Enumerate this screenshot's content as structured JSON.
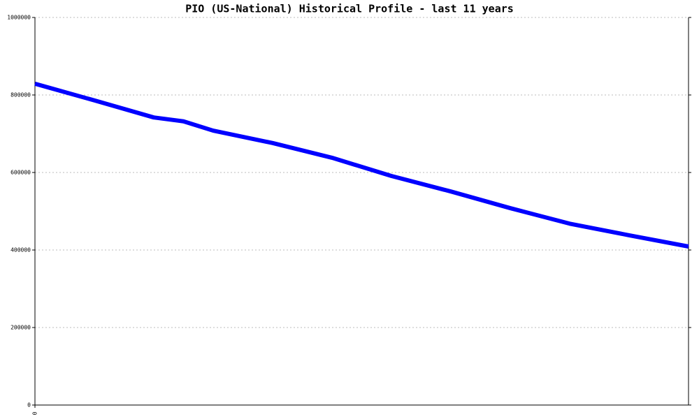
{
  "chart_data": {
    "type": "line",
    "title": "PIO (US-National) Historical Profile - last 11 years",
    "x": [
      0,
      1,
      2,
      2.5,
      3,
      4,
      5,
      6,
      7,
      8,
      9,
      10,
      11
    ],
    "series": [
      {
        "color": "#0000ff",
        "values": [
          829000,
          786000,
          742000,
          732000,
          708000,
          676000,
          638000,
          591000,
          551000,
          508000,
          468000,
          438000,
          409000
        ]
      }
    ],
    "xlim": [
      0,
      11
    ],
    "xticks": [
      0
    ],
    "ylim": [
      0,
      1000000
    ],
    "yticks": [
      0,
      200000,
      400000,
      600000,
      800000,
      1000000
    ],
    "grid": true
  }
}
